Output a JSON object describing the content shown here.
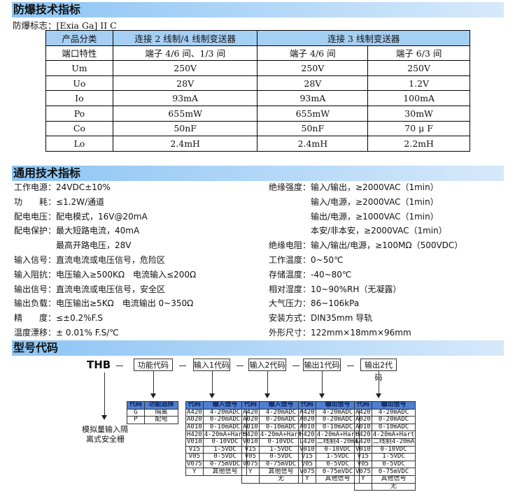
{
  "ex": {
    "title": "防爆技术指标",
    "mark": "防爆标志：[Exia Ga] II C",
    "head1": [
      "产品分类",
      "连接 2 线制/4 线制变送器",
      "连接 3 线制变送器"
    ],
    "head2": [
      "端口特性",
      "端子 4/6 间、1/3 间",
      "端子 4/6 间",
      "端子 6/3 间"
    ],
    "rows": [
      [
        "Um",
        "250V",
        "250V",
        "250V"
      ],
      [
        "Uo",
        "28V",
        "28V",
        "1.2V"
      ],
      [
        "Io",
        "93mA",
        "93mA",
        "100mA"
      ],
      [
        "Po",
        "655mW",
        "655mW",
        "30mW"
      ],
      [
        "Co",
        "50nF",
        "50nF",
        "70 μ F"
      ],
      [
        "Lo",
        "2.4mH",
        "2.4mH",
        "2.2mH"
      ]
    ]
  },
  "gen": {
    "title": "通用技术指标",
    "left": [
      "工作电源：24VDC±10%",
      "功　　耗：≤1.2W/通道",
      "配电电压：配电模式，16V@20mA",
      "配电保护：最大短路电流，40mA",
      "　　　　　最高开路电压，28V",
      "输入信号：直流电流或电压信号，危险区",
      "输入阻抗：电压输入≥500KΩ　电流输入≤200Ω",
      "输出信号：直流电流或电压信号，安全区",
      "输出负载：电压输出≥5KΩ　电流输出 0~350Ω",
      "精　　度：≤±0.2%F.S",
      "温度漂移：± 0.01% F.S/℃"
    ],
    "right": [
      "绝缘强度：输入/输出，≥2000VAC（1min）",
      "　　　　　输入/电源，≥2000VAC（1min）",
      "　　　　　输出/电源，≥1000VAC（1min）",
      "　　　　　本安/非本安，≥2000VAC（1min）",
      "绝缘电阻：输入/输出/电源，≥100MΩ（500VDC）",
      "工作温度：0~50℃",
      "存储温度：-40~80℃",
      "相对湿度：10~90%RH（无凝露）",
      "大气压力：86~106kPa",
      "安装方式：DIN35mm 导轨",
      "外形尺寸：122mm×18mm×96mm"
    ]
  },
  "model": {
    "title": "型号代码",
    "prefix": "THB",
    "dash": "—",
    "boxes": [
      "功能代码",
      "输入1代码",
      "输入2代码",
      "输出1代码",
      "输出2代码"
    ],
    "desc": [
      "模拟量输入隔",
      "离式安全栅"
    ],
    "tables": [
      {
        "head": [
          "代码",
          "功能选择"
        ],
        "rows": [
          [
            "G",
            "隔离"
          ],
          [
            "P",
            "配电"
          ]
        ]
      },
      {
        "head": [
          "代码",
          "输入信号"
        ],
        "rows": [
          [
            "A420",
            "4-20mADC"
          ],
          [
            "A020",
            "0-20mADC"
          ],
          [
            "A010",
            "0-10mADC"
          ],
          [
            "H420",
            "4-20mA+Hart"
          ],
          [
            "V010",
            "0-10VDC"
          ],
          [
            "V15",
            "1-5VDC"
          ],
          [
            "V05",
            "0-5VDC"
          ],
          [
            "V075",
            "0-75mVDC"
          ],
          [
            "Y",
            "其他信号"
          ]
        ]
      },
      {
        "head": [
          "代码",
          "输入信号"
        ],
        "rows": [
          [
            "A420",
            "4-20mADC"
          ],
          [
            "A020",
            "0-20mADC"
          ],
          [
            "A010",
            "0-10mADC"
          ],
          [
            "H420",
            "4-20mA+Hart"
          ],
          [
            "V010",
            "0-10VDC"
          ],
          [
            "V15",
            "1-5VDC"
          ],
          [
            "V05",
            "0-5VDC"
          ],
          [
            "V075",
            "0-75mVDC"
          ],
          [
            "Y",
            "其他信号"
          ],
          [
            "",
            "无"
          ]
        ]
      },
      {
        "head": [
          "代码",
          "输出信号"
        ],
        "rows": [
          [
            "A420",
            "4-20mADC"
          ],
          [
            "A020",
            "0-20mADC"
          ],
          [
            "A010",
            "0-10mADC"
          ],
          [
            "H420",
            "4-20mA+Hart"
          ],
          [
            "L420",
            "二线制4-20mA"
          ],
          [
            "V010",
            "0-10VDC"
          ],
          [
            "V15",
            "1-5VDC"
          ],
          [
            "V05",
            "0-5VDC"
          ],
          [
            "V075",
            "0-75mVDC"
          ],
          [
            "Y",
            "其他信号"
          ]
        ]
      },
      {
        "head": [
          "代码",
          "输出信号"
        ],
        "rows": [
          [
            "A420",
            "4-20mADC"
          ],
          [
            "A020",
            "0-20mADC"
          ],
          [
            "A010",
            "0-10mADC"
          ],
          [
            "H420",
            "4-20mA+Hart"
          ],
          [
            "L420",
            "二线制4-20mA"
          ],
          [
            "V010",
            "0-10VDC"
          ],
          [
            "V15",
            "1-5VDC"
          ],
          [
            "V05",
            "0-5VDC"
          ],
          [
            "V075",
            "0-75mVDC"
          ],
          [
            "Y",
            "其他信号"
          ],
          [
            "",
            "无"
          ]
        ]
      }
    ]
  }
}
